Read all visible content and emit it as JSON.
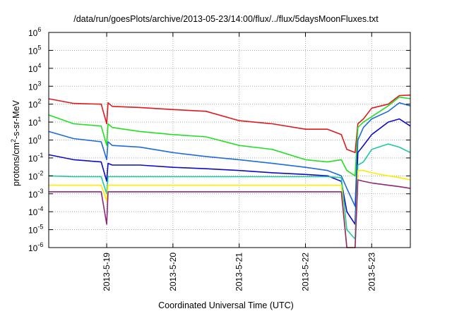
{
  "chart_data": {
    "type": "line",
    "title": "/data/run/goesPlots/archive/2013-05-23/14:00/flux/../flux/5daysMoonFluxes.txt",
    "xlabel": "Coordinated Universal Time (UTC)",
    "ylabel": {
      "prefix": "protons/cm",
      "sup": "2",
      "suffix": "-s-sr-MeV"
    },
    "y_scale": "log",
    "ylim": [
      1e-06,
      1000000.0
    ],
    "xlim": [
      "2013-05-18 03:00",
      "2013-05-23 14:00"
    ],
    "x_tick_labels": [
      "2013-5-19",
      "2013-5-20",
      "2013-5-21",
      "2013-5-22",
      "2013-5-23"
    ],
    "y_tick_labels": [
      {
        "base": "10",
        "exp": "-6"
      },
      {
        "base": "10",
        "exp": "-5"
      },
      {
        "base": "10",
        "exp": "-4"
      },
      {
        "base": "10",
        "exp": "-3"
      },
      {
        "base": "10",
        "exp": "-2"
      },
      {
        "base": "10",
        "exp": "-1"
      },
      {
        "base": "10",
        "exp": "0"
      },
      {
        "base": "10",
        "exp": "1"
      },
      {
        "base": "10",
        "exp": "2"
      },
      {
        "base": "10",
        "exp": "3"
      },
      {
        "base": "10",
        "exp": "4"
      },
      {
        "base": "10",
        "exp": "5"
      },
      {
        "base": "10",
        "exp": "6"
      }
    ],
    "grid": true,
    "legend": "none",
    "x": [
      "2013-05-18 03:00",
      "2013-05-18 12:00",
      "2013-05-18 22:00",
      "2013-05-19 00:00",
      "2013-05-19 00:30",
      "2013-05-19 02:00",
      "2013-05-19 12:00",
      "2013-05-20 00:00",
      "2013-05-20 12:00",
      "2013-05-21 00:00",
      "2013-05-21 12:00",
      "2013-05-22 00:00",
      "2013-05-22 08:00",
      "2013-05-22 13:00",
      "2013-05-22 15:00",
      "2013-05-22 18:00",
      "2013-05-22 19:00",
      "2013-05-22 21:00",
      "2013-05-23 00:00",
      "2013-05-23 06:00",
      "2013-05-23 10:00",
      "2013-05-23 14:00"
    ],
    "series": [
      {
        "color": "#e0191c",
        "values": [
          200,
          110,
          100,
          8,
          120,
          75,
          65,
          50,
          40,
          12,
          8,
          4,
          4,
          2,
          0.3,
          0.2,
          8,
          15,
          60,
          100,
          300,
          320
        ]
      },
      {
        "color": "#22e022",
        "values": [
          25,
          8,
          6,
          0.5,
          8,
          5,
          3,
          2,
          1.5,
          0.5,
          0.3,
          0.08,
          0.06,
          0.08,
          0.02,
          0.01,
          5,
          10,
          20,
          80,
          250,
          200
        ]
      },
      {
        "color": "#1e6bdc",
        "values": [
          3,
          1.2,
          0.8,
          0.08,
          0.8,
          0.5,
          0.4,
          0.2,
          0.12,
          0.08,
          0.05,
          0.03,
          0.02,
          0.01,
          0.002,
          0.0002,
          1,
          5,
          15,
          40,
          120,
          80
        ]
      },
      {
        "color": "#0c0cc8",
        "values": [
          0.15,
          0.08,
          0.06,
          0.005,
          0.05,
          0.04,
          0.04,
          0.03,
          0.025,
          0.02,
          0.015,
          0.012,
          0.01,
          0.005,
          0.0001,
          2e-05,
          0.2,
          0.5,
          2,
          10,
          15,
          6
        ]
      },
      {
        "color": "#1ec8a0",
        "values": [
          0.01,
          0.009,
          0.009,
          0.001,
          0.009,
          0.009,
          0.009,
          0.009,
          0.009,
          0.009,
          0.009,
          0.009,
          0.009,
          0.008,
          1e-05,
          3e-06,
          0.04,
          0.06,
          0.3,
          0.6,
          0.4,
          0.2
        ]
      },
      {
        "color": "#ffeb00",
        "values": [
          0.003,
          0.003,
          0.003,
          0.0004,
          0.003,
          0.003,
          0.003,
          0.003,
          0.003,
          0.003,
          0.003,
          0.003,
          0.003,
          0.003,
          1e-06,
          1e-06,
          0.02,
          0.02,
          0.015,
          0.01,
          0.008,
          0.006
        ]
      },
      {
        "color": "#8c2878",
        "values": [
          0.0013,
          0.0013,
          0.0013,
          2e-05,
          0.0013,
          0.0013,
          0.0013,
          0.0013,
          0.0013,
          0.0013,
          0.0013,
          0.0013,
          0.0013,
          0.0013,
          1e-06,
          1e-06,
          0.006,
          0.005,
          0.004,
          0.003,
          0.0025,
          0.002
        ]
      }
    ]
  }
}
